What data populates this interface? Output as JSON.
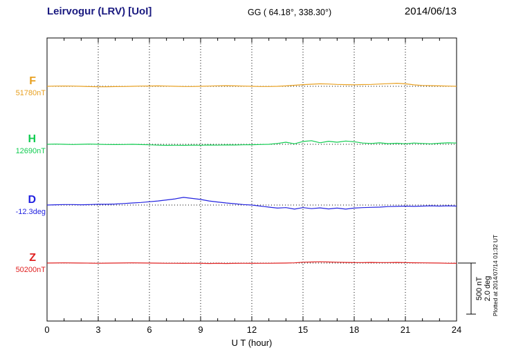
{
  "header": {
    "station": "Leirvogur (LRV)  [UoI]",
    "coords": "GG ( 64.18°, 338.30°)",
    "date": "2014/06/13"
  },
  "xaxis": {
    "label": "U T (hour)",
    "ticks": [
      "0",
      "3",
      "6",
      "9",
      "12",
      "15",
      "18",
      "21",
      "24"
    ]
  },
  "scalebar": {
    "nt_label": "500 nT",
    "deg_label": "2.0 deg"
  },
  "plotted_at": "Plotted at 2014/07/14 01:32 UT",
  "colors": {
    "F": "#e8a020",
    "H": "#10cc50",
    "D": "#2222e0",
    "Z": "#e02020",
    "frame": "#000000",
    "grid": "#000000"
  },
  "chart_data": {
    "type": "line",
    "title": "Leirvogur (LRV) magnetogram 2014/06/13",
    "xlabel": "U T (hour)",
    "x_range": [
      0,
      24
    ],
    "x_hours_step": 0.5,
    "x_tick_values": [
      0,
      3,
      6,
      9,
      12,
      15,
      18,
      21,
      24
    ],
    "grid": "vertical-dotted",
    "scale": {
      "nT_per_bar": 500,
      "deg_per_bar": 2.0
    },
    "series": [
      {
        "name": "F",
        "label": "F",
        "base_value_label": "51780nT",
        "unit": "nT",
        "color": "#e8a020",
        "offsets": [
          0,
          2,
          3,
          2,
          0,
          -3,
          -5,
          -4,
          -3,
          -2,
          0,
          2,
          3,
          4,
          2,
          0,
          -2,
          -2,
          0,
          2,
          5,
          6,
          4,
          2,
          0,
          -2,
          -2,
          0,
          4,
          10,
          16,
          20,
          24,
          22,
          18,
          16,
          15,
          17,
          18,
          22,
          26,
          30,
          24,
          14,
          8,
          6,
          4,
          2,
          0
        ]
      },
      {
        "name": "H",
        "label": "H",
        "base_value_label": "12690nT",
        "unit": "nT",
        "color": "#10cc50",
        "offsets": [
          0,
          2,
          0,
          -2,
          0,
          2,
          0,
          -2,
          -3,
          -2,
          0,
          -3,
          -5,
          -8,
          -10,
          -9,
          -10,
          -8,
          -9,
          -7,
          -8,
          -6,
          -7,
          -5,
          -4,
          -2,
          0,
          8,
          20,
          5,
          28,
          35,
          15,
          30,
          20,
          32,
          25,
          12,
          8,
          14,
          6,
          10,
          5,
          12,
          8,
          5,
          10,
          14,
          12
        ]
      },
      {
        "name": "D",
        "label": "D",
        "base_value_label": "-12.3deg",
        "unit": "deg",
        "color": "#2222e0",
        "offsets": [
          0,
          0.01,
          0.02,
          0.02,
          0.01,
          0.02,
          0.03,
          0.03,
          0.04,
          0.06,
          0.08,
          0.1,
          0.13,
          0.16,
          0.2,
          0.24,
          0.3,
          0.26,
          0.22,
          0.16,
          0.12,
          0.08,
          0.05,
          0.02,
          0,
          -0.04,
          -0.08,
          -0.12,
          -0.1,
          -0.16,
          -0.1,
          -0.14,
          -0.11,
          -0.15,
          -0.12,
          -0.16,
          -0.12,
          -0.1,
          -0.09,
          -0.08,
          -0.06,
          -0.05,
          -0.04,
          -0.05,
          -0.04,
          -0.03,
          -0.04,
          -0.03,
          -0.04
        ]
      },
      {
        "name": "Z",
        "label": "Z",
        "base_value_label": "50200nT",
        "unit": "nT",
        "color": "#e02020",
        "offsets": [
          0,
          1,
          2,
          1,
          0,
          -1,
          -2,
          -1,
          0,
          1,
          2,
          1,
          0,
          -1,
          -2,
          -2,
          -3,
          -2,
          -3,
          -4,
          -3,
          -4,
          -3,
          -2,
          -3,
          -2,
          -2,
          -1,
          0,
          2,
          8,
          10,
          12,
          10,
          8,
          6,
          5,
          5,
          6,
          5,
          5,
          6,
          5,
          3,
          2,
          1,
          0,
          -2,
          -3
        ]
      }
    ]
  }
}
